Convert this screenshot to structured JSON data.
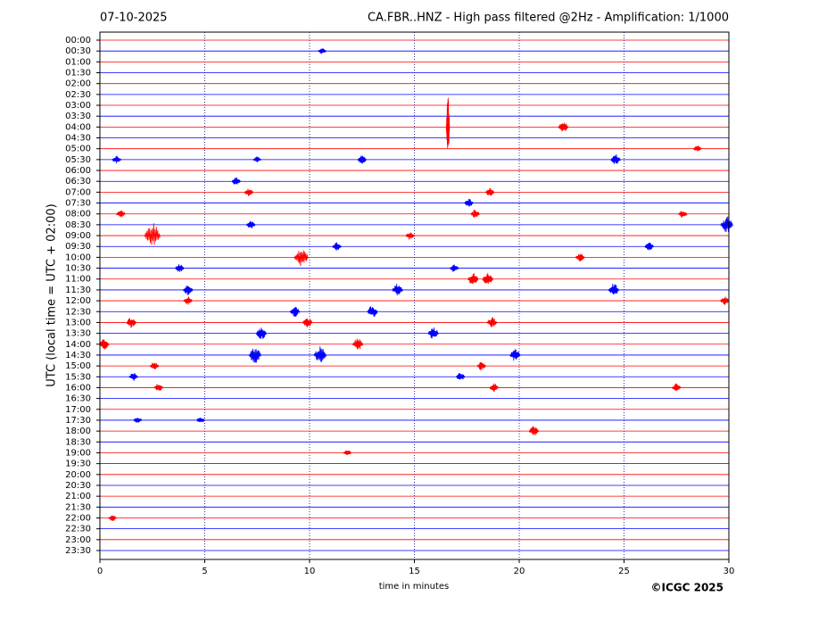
{
  "chart_data": {
    "type": "helicorder",
    "date": "07-10-2025",
    "title": "CA.FBR..HNZ - High pass filtered @2Hz - Amplification: 1/1000",
    "xlabel": "time in minutes",
    "ylabel": "UTC (local time = UTC + 02:00)",
    "copyright": "©ICGC 2025",
    "xlim": [
      0,
      30
    ],
    "xticks": [
      0,
      5,
      10,
      15,
      20,
      25,
      30
    ],
    "grid": true,
    "colors": [
      "#ff0000",
      "#0000ff"
    ],
    "grid_color": "#000080",
    "categories": [
      "00:00",
      "00:30",
      "01:00",
      "01:30",
      "02:00",
      "02:30",
      "03:00",
      "03:30",
      "04:00",
      "04:30",
      "05:00",
      "05:30",
      "06:00",
      "06:30",
      "07:00",
      "07:30",
      "08:00",
      "08:30",
      "09:00",
      "09:30",
      "10:00",
      "10:30",
      "11:00",
      "11:30",
      "12:00",
      "12:30",
      "13:00",
      "13:30",
      "14:00",
      "14:30",
      "15:00",
      "15:30",
      "16:00",
      "16:30",
      "17:00",
      "17:30",
      "18:00",
      "18:30",
      "19:00",
      "19:30",
      "20:00",
      "20:30",
      "21:00",
      "21:30",
      "22:00",
      "22:30",
      "23:00",
      "23:30"
    ],
    "events": [
      {
        "row": 1,
        "x": 10.6,
        "amplitude": 0.3
      },
      {
        "row": 8,
        "x": 16.6,
        "amplitude": 3
      },
      {
        "row": 8,
        "x": 22.1,
        "amplitude": 0.5
      },
      {
        "row": 10,
        "x": 28.5,
        "amplitude": 0.3
      },
      {
        "row": 11,
        "x": 0.8,
        "amplitude": 0.4
      },
      {
        "row": 11,
        "x": 7.5,
        "amplitude": 0.3
      },
      {
        "row": 11,
        "x": 12.5,
        "amplitude": 0.4
      },
      {
        "row": 11,
        "x": 24.6,
        "amplitude": 0.5
      },
      {
        "row": 13,
        "x": 6.5,
        "amplitude": 0.4
      },
      {
        "row": 14,
        "x": 7.1,
        "amplitude": 0.4
      },
      {
        "row": 14,
        "x": 18.6,
        "amplitude": 0.4
      },
      {
        "row": 15,
        "x": 17.6,
        "amplitude": 0.4
      },
      {
        "row": 16,
        "x": 1.0,
        "amplitude": 0.4
      },
      {
        "row": 16,
        "x": 17.9,
        "amplitude": 0.4
      },
      {
        "row": 16,
        "x": 27.8,
        "amplitude": 0.4
      },
      {
        "row": 17,
        "x": 7.2,
        "amplitude": 0.4
      },
      {
        "row": 17,
        "x": 29.9,
        "amplitude": 0.8
      },
      {
        "row": 18,
        "x": 2.5,
        "amplitude": 1.2
      },
      {
        "row": 18,
        "x": 14.8,
        "amplitude": 0.4
      },
      {
        "row": 19,
        "x": 11.3,
        "amplitude": 0.4
      },
      {
        "row": 19,
        "x": 26.2,
        "amplitude": 0.4
      },
      {
        "row": 20,
        "x": 9.6,
        "amplitude": 1.0
      },
      {
        "row": 20,
        "x": 22.9,
        "amplitude": 0.4
      },
      {
        "row": 21,
        "x": 3.8,
        "amplitude": 0.4
      },
      {
        "row": 21,
        "x": 16.9,
        "amplitude": 0.4
      },
      {
        "row": 22,
        "x": 17.8,
        "amplitude": 0.6
      },
      {
        "row": 22,
        "x": 18.5,
        "amplitude": 0.6
      },
      {
        "row": 23,
        "x": 4.2,
        "amplitude": 0.5
      },
      {
        "row": 23,
        "x": 14.2,
        "amplitude": 0.6
      },
      {
        "row": 23,
        "x": 24.5,
        "amplitude": 0.6
      },
      {
        "row": 24,
        "x": 4.2,
        "amplitude": 0.4
      },
      {
        "row": 24,
        "x": 29.8,
        "amplitude": 0.4
      },
      {
        "row": 25,
        "x": 9.3,
        "amplitude": 0.5
      },
      {
        "row": 25,
        "x": 13.0,
        "amplitude": 0.6
      },
      {
        "row": 26,
        "x": 1.5,
        "amplitude": 0.5
      },
      {
        "row": 26,
        "x": 9.9,
        "amplitude": 0.5
      },
      {
        "row": 26,
        "x": 18.7,
        "amplitude": 0.5
      },
      {
        "row": 27,
        "x": 7.7,
        "amplitude": 0.6
      },
      {
        "row": 27,
        "x": 15.9,
        "amplitude": 0.6
      },
      {
        "row": 28,
        "x": 0.2,
        "amplitude": 0.5
      },
      {
        "row": 28,
        "x": 12.3,
        "amplitude": 0.6
      },
      {
        "row": 29,
        "x": 7.4,
        "amplitude": 0.8
      },
      {
        "row": 29,
        "x": 10.5,
        "amplitude": 0.8
      },
      {
        "row": 29,
        "x": 19.8,
        "amplitude": 0.6
      },
      {
        "row": 30,
        "x": 2.6,
        "amplitude": 0.4
      },
      {
        "row": 30,
        "x": 18.2,
        "amplitude": 0.4
      },
      {
        "row": 31,
        "x": 1.6,
        "amplitude": 0.4
      },
      {
        "row": 31,
        "x": 17.2,
        "amplitude": 0.4
      },
      {
        "row": 32,
        "x": 2.8,
        "amplitude": 0.4
      },
      {
        "row": 32,
        "x": 18.8,
        "amplitude": 0.4
      },
      {
        "row": 32,
        "x": 27.5,
        "amplitude": 0.4
      },
      {
        "row": 35,
        "x": 1.8,
        "amplitude": 0.3
      },
      {
        "row": 35,
        "x": 4.8,
        "amplitude": 0.3
      },
      {
        "row": 36,
        "x": 20.7,
        "amplitude": 0.5
      },
      {
        "row": 38,
        "x": 11.8,
        "amplitude": 0.3
      },
      {
        "row": 44,
        "x": 0.6,
        "amplitude": 0.3
      }
    ]
  }
}
